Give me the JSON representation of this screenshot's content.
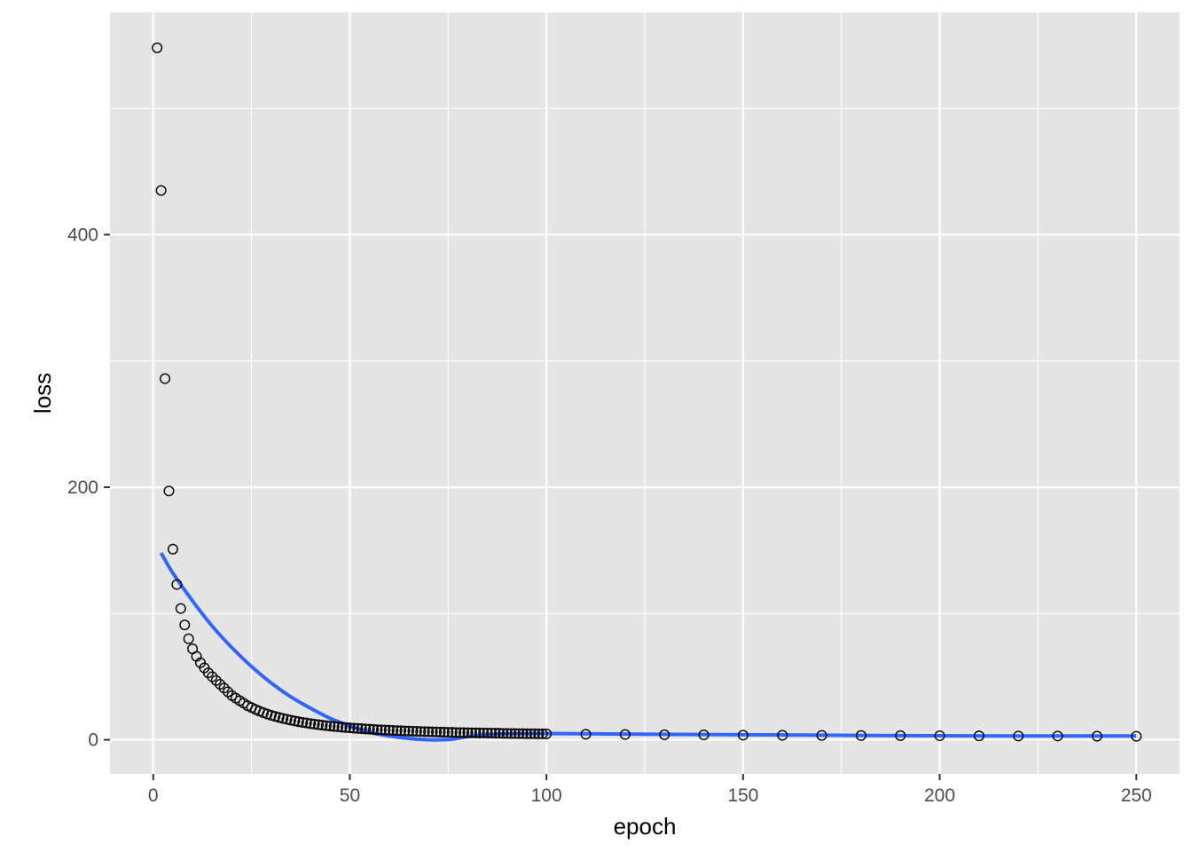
{
  "chart_data": {
    "type": "scatter",
    "title": "",
    "xlabel": "epoch",
    "ylabel": "loss",
    "xlim": [
      -11,
      261
    ],
    "ylim": [
      -27,
      576
    ],
    "x_ticks": [
      0,
      50,
      100,
      150,
      200,
      250
    ],
    "x_tick_labels": [
      "0",
      "50",
      "100",
      "150",
      "200",
      "250"
    ],
    "y_ticks": [
      0,
      200,
      400
    ],
    "y_tick_labels": [
      "0",
      "200",
      "400"
    ],
    "x_minor_ticks": [
      25,
      75,
      125,
      175,
      225
    ],
    "y_minor_ticks": [
      100,
      300,
      500
    ],
    "grid": true,
    "legend": "none",
    "colors": {
      "panel": "#e5e5e5",
      "grid": "#ffffff",
      "points": "#000000",
      "smooth": "#3366ff",
      "tick_text": "#4d4d4d",
      "tick_mark": "#333333"
    },
    "series": [
      {
        "kind": "points",
        "x": [
          1,
          2,
          3,
          4,
          5,
          6,
          7,
          8,
          9,
          10,
          11,
          12,
          13,
          14,
          15,
          16,
          17,
          18,
          19,
          20,
          21,
          22,
          23,
          24,
          25,
          26,
          27,
          28,
          29,
          30,
          31,
          32,
          33,
          34,
          35,
          36,
          37,
          38,
          39,
          40,
          41,
          42,
          43,
          44,
          45,
          46,
          47,
          48,
          49,
          50,
          51,
          52,
          53,
          54,
          55,
          56,
          57,
          58,
          59,
          60,
          61,
          62,
          63,
          64,
          65,
          66,
          67,
          68,
          69,
          70,
          71,
          72,
          73,
          74,
          75,
          76,
          77,
          78,
          79,
          80,
          81,
          82,
          83,
          84,
          85,
          86,
          87,
          88,
          89,
          90,
          91,
          92,
          93,
          94,
          95,
          96,
          97,
          98,
          99,
          100,
          110,
          120,
          130,
          140,
          150,
          160,
          170,
          180,
          190,
          200,
          210,
          220,
          230,
          240,
          250
        ],
        "y": [
          548,
          435,
          286,
          197,
          151,
          123,
          104,
          91,
          80,
          72,
          66,
          61,
          57,
          53,
          50,
          47,
          44,
          41,
          38,
          35,
          33,
          31,
          29,
          27,
          25.5,
          24,
          22.7,
          21.5,
          20.4,
          19.4,
          18.5,
          17.7,
          16.9,
          16.2,
          15.5,
          14.9,
          14.3,
          13.8,
          13.3,
          12.8,
          12.4,
          12.0,
          11.6,
          11.2,
          10.9,
          10.6,
          10.3,
          10.0,
          9.7,
          9.5,
          9.2,
          9.0,
          8.8,
          8.6,
          8.4,
          8.2,
          8.0,
          7.9,
          7.7,
          7.6,
          7.4,
          7.3,
          7.2,
          7.0,
          6.9,
          6.8,
          6.7,
          6.6,
          6.5,
          6.4,
          6.3,
          6.2,
          6.1,
          6.0,
          5.9,
          5.9,
          5.8,
          5.7,
          5.7,
          5.6,
          5.5,
          5.5,
          5.4,
          5.4,
          5.3,
          5.3,
          5.2,
          5.2,
          5.1,
          5.1,
          5.0,
          5.0,
          4.9,
          4.9,
          4.8,
          4.8,
          4.8,
          4.7,
          4.7,
          4.7,
          4.4,
          4.2,
          4.0,
          3.9,
          3.7,
          3.6,
          3.5,
          3.4,
          3.3,
          3.2,
          3.1,
          3.0,
          3.0,
          2.9,
          2.8
        ]
      },
      {
        "kind": "smooth",
        "x": [
          2,
          5,
          10,
          15,
          20,
          25,
          30,
          35,
          40,
          45,
          50,
          55,
          60,
          65,
          70,
          73,
          76,
          80,
          85,
          90,
          100,
          120,
          150,
          200,
          250
        ],
        "y": [
          148,
          132,
          110,
          90,
          73,
          58,
          45,
          34,
          25,
          17,
          11,
          6,
          3,
          1,
          0,
          0,
          0.5,
          2.5,
          4,
          4.8,
          5,
          4.5,
          4,
          3.2,
          3
        ]
      }
    ]
  }
}
